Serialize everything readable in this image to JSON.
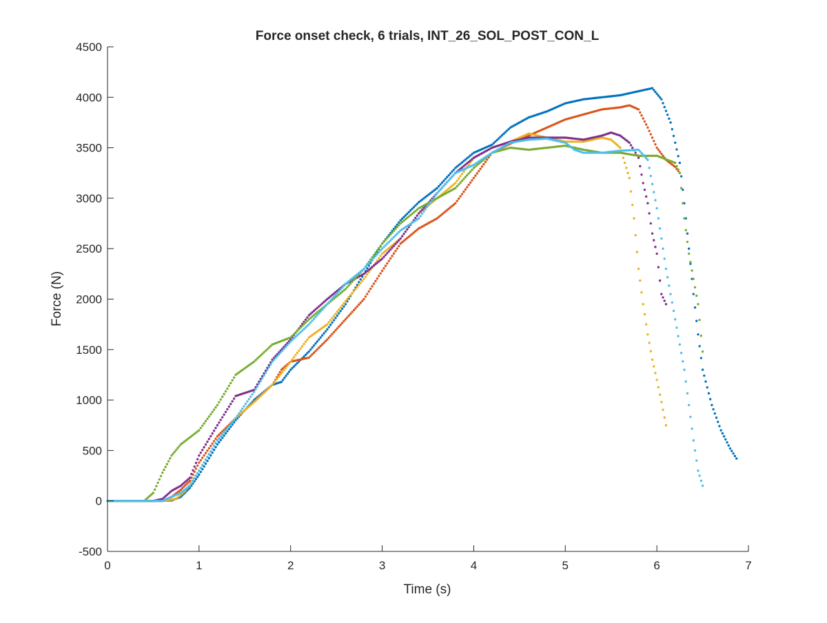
{
  "chart_data": {
    "type": "scatter",
    "title": "Force onset check, 6 trials, INT_26_SOL_POST_CON_L",
    "xlabel": "Time (s)",
    "ylabel": "Force (N)",
    "xlim": [
      0,
      7
    ],
    "ylim": [
      -500,
      4500
    ],
    "xticks": [
      "0",
      "1",
      "2",
      "3",
      "4",
      "5",
      "6",
      "7"
    ],
    "yticks": [
      "-500",
      "0",
      "500",
      "1000",
      "1500",
      "2000",
      "2500",
      "3000",
      "3500",
      "4000",
      "4500"
    ],
    "grid": false,
    "legend": "none",
    "series": [
      {
        "color": "#0072BD",
        "points": [
          [
            0,
            0
          ],
          [
            0.5,
            0
          ],
          [
            0.7,
            5
          ],
          [
            0.8,
            40
          ],
          [
            0.9,
            130
          ],
          [
            1.0,
            260
          ],
          [
            1.2,
            560
          ],
          [
            1.4,
            800
          ],
          [
            1.6,
            1000
          ],
          [
            1.8,
            1150
          ],
          [
            1.9,
            1180
          ],
          [
            2.0,
            1300
          ],
          [
            2.2,
            1480
          ],
          [
            2.4,
            1700
          ],
          [
            2.6,
            1950
          ],
          [
            2.8,
            2250
          ],
          [
            3.0,
            2550
          ],
          [
            3.2,
            2780
          ],
          [
            3.4,
            2960
          ],
          [
            3.6,
            3100
          ],
          [
            3.8,
            3300
          ],
          [
            4.0,
            3450
          ],
          [
            4.2,
            3530
          ],
          [
            4.4,
            3700
          ],
          [
            4.6,
            3800
          ],
          [
            4.8,
            3860
          ],
          [
            5.0,
            3940
          ],
          [
            5.2,
            3980
          ],
          [
            5.4,
            4000
          ],
          [
            5.6,
            4020
          ],
          [
            5.8,
            4060
          ],
          [
            5.95,
            4090
          ],
          [
            6.05,
            3980
          ],
          [
            6.15,
            3750
          ],
          [
            6.25,
            3350
          ],
          [
            6.3,
            2950
          ],
          [
            6.35,
            2500
          ],
          [
            6.4,
            2050
          ],
          [
            6.45,
            1650
          ],
          [
            6.5,
            1300
          ],
          [
            6.6,
            950
          ],
          [
            6.7,
            700
          ],
          [
            6.8,
            520
          ],
          [
            6.87,
            420
          ]
        ]
      },
      {
        "color": "#D95319",
        "points": [
          [
            0,
            0
          ],
          [
            0.6,
            0
          ],
          [
            0.7,
            40
          ],
          [
            0.8,
            110
          ],
          [
            0.9,
            200
          ],
          [
            1.0,
            380
          ],
          [
            1.2,
            640
          ],
          [
            1.4,
            820
          ],
          [
            1.6,
            980
          ],
          [
            1.8,
            1150
          ],
          [
            1.9,
            1300
          ],
          [
            2.0,
            1380
          ],
          [
            2.2,
            1420
          ],
          [
            2.4,
            1600
          ],
          [
            2.6,
            1800
          ],
          [
            2.8,
            2000
          ],
          [
            3.0,
            2280
          ],
          [
            3.2,
            2550
          ],
          [
            3.4,
            2700
          ],
          [
            3.6,
            2800
          ],
          [
            3.8,
            2950
          ],
          [
            4.0,
            3200
          ],
          [
            4.2,
            3450
          ],
          [
            4.4,
            3540
          ],
          [
            4.6,
            3620
          ],
          [
            4.8,
            3700
          ],
          [
            5.0,
            3780
          ],
          [
            5.2,
            3830
          ],
          [
            5.4,
            3880
          ],
          [
            5.6,
            3900
          ],
          [
            5.7,
            3920
          ],
          [
            5.8,
            3880
          ],
          [
            5.9,
            3700
          ],
          [
            6.0,
            3500
          ],
          [
            6.1,
            3380
          ],
          [
            6.2,
            3310
          ],
          [
            6.25,
            3250
          ]
        ]
      },
      {
        "color": "#EDB120",
        "points": [
          [
            0,
            0
          ],
          [
            0.6,
            0
          ],
          [
            0.75,
            20
          ],
          [
            0.85,
            100
          ],
          [
            1.0,
            300
          ],
          [
            1.2,
            600
          ],
          [
            1.4,
            820
          ],
          [
            1.6,
            980
          ],
          [
            1.8,
            1150
          ],
          [
            2.0,
            1380
          ],
          [
            2.2,
            1620
          ],
          [
            2.4,
            1750
          ],
          [
            2.6,
            1980
          ],
          [
            2.8,
            2200
          ],
          [
            3.0,
            2450
          ],
          [
            3.2,
            2600
          ],
          [
            3.4,
            2850
          ],
          [
            3.6,
            3000
          ],
          [
            3.8,
            3150
          ],
          [
            4.0,
            3400
          ],
          [
            4.2,
            3500
          ],
          [
            4.4,
            3560
          ],
          [
            4.6,
            3640
          ],
          [
            4.8,
            3600
          ],
          [
            5.0,
            3560
          ],
          [
            5.2,
            3560
          ],
          [
            5.4,
            3600
          ],
          [
            5.5,
            3580
          ],
          [
            5.6,
            3500
          ],
          [
            5.7,
            3200
          ],
          [
            5.75,
            2800
          ],
          [
            5.8,
            2300
          ],
          [
            5.85,
            1950
          ],
          [
            5.9,
            1650
          ],
          [
            5.95,
            1400
          ],
          [
            6.0,
            1200
          ],
          [
            6.05,
            980
          ],
          [
            6.1,
            750
          ]
        ]
      },
      {
        "color": "#7E2F8E",
        "points": [
          [
            0,
            0
          ],
          [
            0.5,
            0
          ],
          [
            0.6,
            20
          ],
          [
            0.7,
            100
          ],
          [
            0.8,
            150
          ],
          [
            0.9,
            230
          ],
          [
            1.0,
            450
          ],
          [
            1.2,
            750
          ],
          [
            1.4,
            1040
          ],
          [
            1.6,
            1100
          ],
          [
            1.8,
            1400
          ],
          [
            2.0,
            1600
          ],
          [
            2.2,
            1840
          ],
          [
            2.4,
            2000
          ],
          [
            2.6,
            2150
          ],
          [
            2.8,
            2250
          ],
          [
            3.0,
            2400
          ],
          [
            3.2,
            2600
          ],
          [
            3.4,
            2850
          ],
          [
            3.6,
            3050
          ],
          [
            3.8,
            3250
          ],
          [
            4.0,
            3400
          ],
          [
            4.2,
            3500
          ],
          [
            4.4,
            3560
          ],
          [
            4.6,
            3600
          ],
          [
            4.8,
            3600
          ],
          [
            5.0,
            3600
          ],
          [
            5.2,
            3580
          ],
          [
            5.4,
            3620
          ],
          [
            5.5,
            3650
          ],
          [
            5.6,
            3620
          ],
          [
            5.7,
            3550
          ],
          [
            5.8,
            3400
          ],
          [
            5.85,
            3150
          ],
          [
            5.9,
            2950
          ],
          [
            5.95,
            2650
          ],
          [
            6.0,
            2450
          ],
          [
            6.05,
            2050
          ],
          [
            6.1,
            1950
          ]
        ]
      },
      {
        "color": "#77AC30",
        "points": [
          [
            0,
            0
          ],
          [
            0.4,
            0
          ],
          [
            0.5,
            80
          ],
          [
            0.6,
            280
          ],
          [
            0.7,
            450
          ],
          [
            0.8,
            560
          ],
          [
            1.0,
            700
          ],
          [
            1.2,
            950
          ],
          [
            1.4,
            1250
          ],
          [
            1.6,
            1380
          ],
          [
            1.8,
            1550
          ],
          [
            2.0,
            1620
          ],
          [
            2.2,
            1800
          ],
          [
            2.4,
            1950
          ],
          [
            2.6,
            2100
          ],
          [
            2.8,
            2300
          ],
          [
            3.0,
            2550
          ],
          [
            3.2,
            2750
          ],
          [
            3.4,
            2900
          ],
          [
            3.6,
            3000
          ],
          [
            3.8,
            3100
          ],
          [
            4.0,
            3300
          ],
          [
            4.2,
            3450
          ],
          [
            4.4,
            3500
          ],
          [
            4.6,
            3480
          ],
          [
            4.8,
            3500
          ],
          [
            5.0,
            3520
          ],
          [
            5.2,
            3480
          ],
          [
            5.4,
            3450
          ],
          [
            5.6,
            3450
          ],
          [
            5.8,
            3420
          ],
          [
            6.0,
            3420
          ],
          [
            6.2,
            3350
          ],
          [
            6.25,
            3250
          ],
          [
            6.3,
            2800
          ],
          [
            6.35,
            2450
          ],
          [
            6.4,
            2200
          ],
          [
            6.45,
            1950
          ],
          [
            6.5,
            1480
          ]
        ]
      },
      {
        "color": "#4DBEEE",
        "points": [
          [
            0,
            0
          ],
          [
            0.6,
            0
          ],
          [
            0.8,
            80
          ],
          [
            0.9,
            150
          ],
          [
            1.0,
            300
          ],
          [
            1.2,
            600
          ],
          [
            1.4,
            820
          ],
          [
            1.6,
            1080
          ],
          [
            1.8,
            1380
          ],
          [
            2.0,
            1580
          ],
          [
            2.2,
            1750
          ],
          [
            2.4,
            1950
          ],
          [
            2.6,
            2150
          ],
          [
            2.8,
            2300
          ],
          [
            3.0,
            2500
          ],
          [
            3.2,
            2680
          ],
          [
            3.4,
            2800
          ],
          [
            3.6,
            3050
          ],
          [
            3.8,
            3250
          ],
          [
            4.0,
            3330
          ],
          [
            4.2,
            3450
          ],
          [
            4.4,
            3550
          ],
          [
            4.6,
            3580
          ],
          [
            4.8,
            3590
          ],
          [
            5.0,
            3550
          ],
          [
            5.1,
            3480
          ],
          [
            5.2,
            3450
          ],
          [
            5.4,
            3450
          ],
          [
            5.6,
            3470
          ],
          [
            5.8,
            3480
          ],
          [
            5.9,
            3380
          ],
          [
            6.0,
            2900
          ],
          [
            6.1,
            2300
          ],
          [
            6.2,
            1800
          ],
          [
            6.3,
            1300
          ],
          [
            6.35,
            950
          ],
          [
            6.4,
            600
          ],
          [
            6.45,
            300
          ],
          [
            6.5,
            150
          ]
        ]
      }
    ]
  }
}
